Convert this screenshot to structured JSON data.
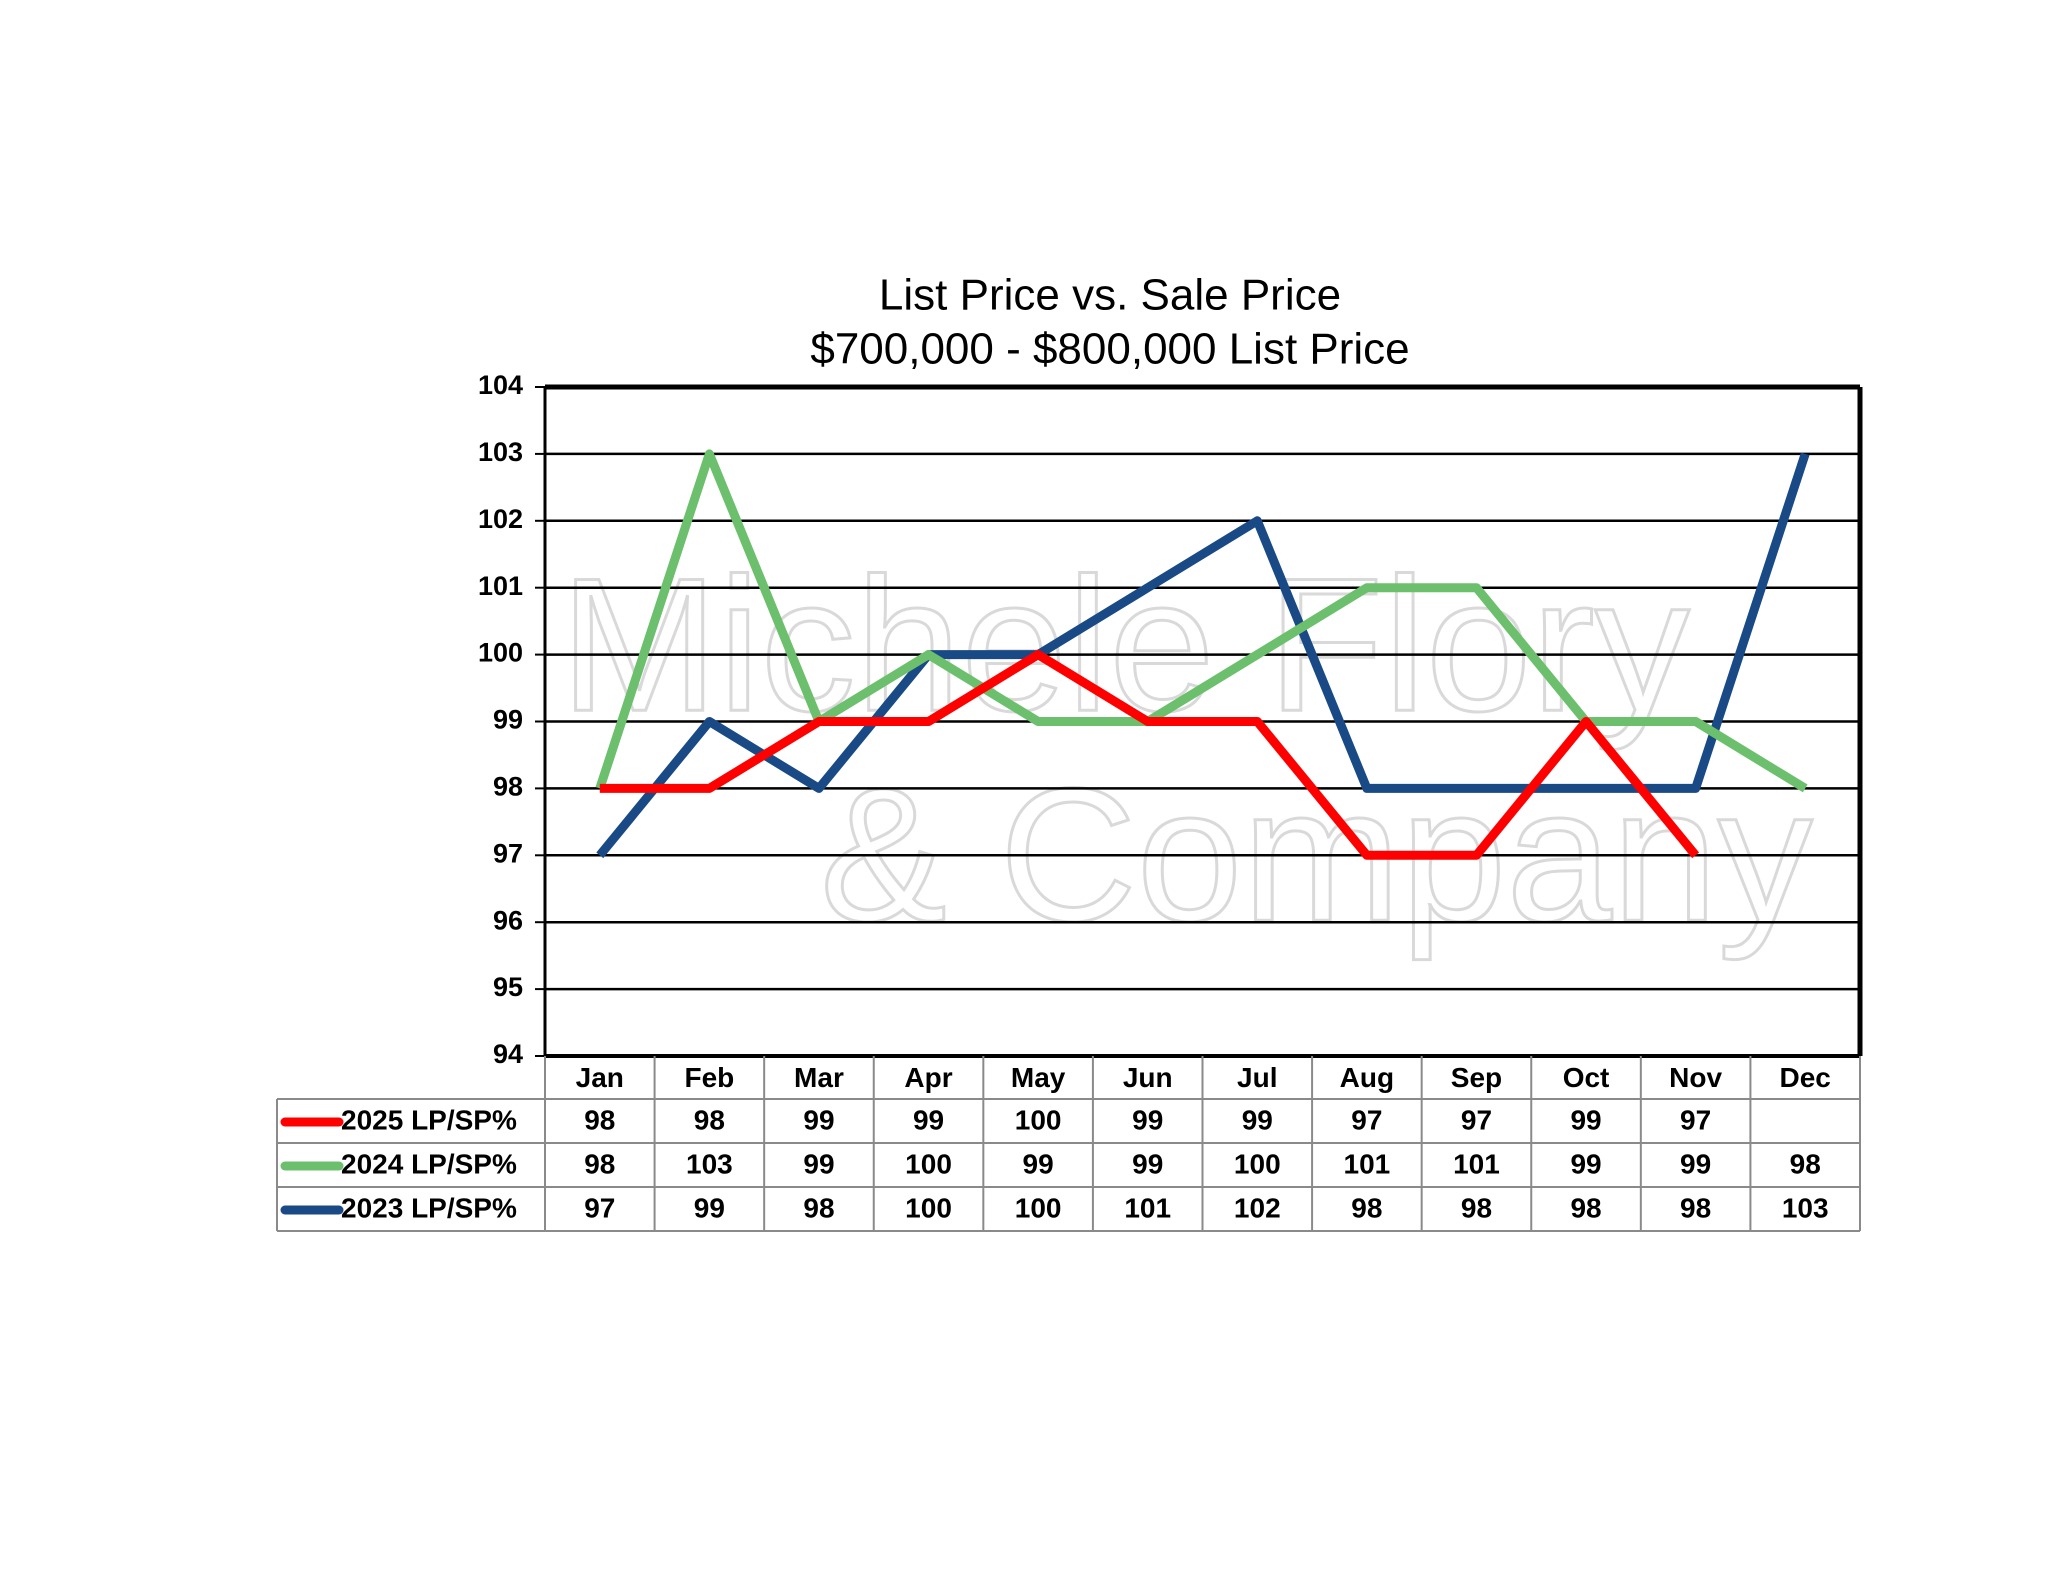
{
  "chart_data": {
    "type": "line",
    "title": "List Price vs. Sale Price",
    "subtitle": "$700,000 - $800,000 List Price",
    "watermark": [
      "Michele Flory",
      "& Company"
    ],
    "categories": [
      "Jan",
      "Feb",
      "Mar",
      "Apr",
      "May",
      "Jun",
      "Jul",
      "Aug",
      "Sep",
      "Oct",
      "Nov",
      "Dec"
    ],
    "series": [
      {
        "name": "2025 LP/SP%",
        "color": "#ff0000",
        "values": [
          98,
          98,
          99,
          99,
          100,
          99,
          99,
          97,
          97,
          99,
          97,
          null
        ]
      },
      {
        "name": "2024 LP/SP%",
        "color": "#6cbf6c",
        "values": [
          98,
          103,
          99,
          100,
          99,
          99,
          100,
          101,
          101,
          99,
          99,
          98
        ]
      },
      {
        "name": "2023 LP/SP%",
        "color": "#1a4a86",
        "values": [
          97,
          99,
          98,
          100,
          100,
          101,
          102,
          98,
          98,
          98,
          98,
          103
        ]
      }
    ],
    "ylim": [
      94,
      104
    ],
    "yticks": [
      94,
      95,
      96,
      97,
      98,
      99,
      100,
      101,
      102,
      103,
      104
    ],
    "grid": true,
    "data_table": true
  }
}
